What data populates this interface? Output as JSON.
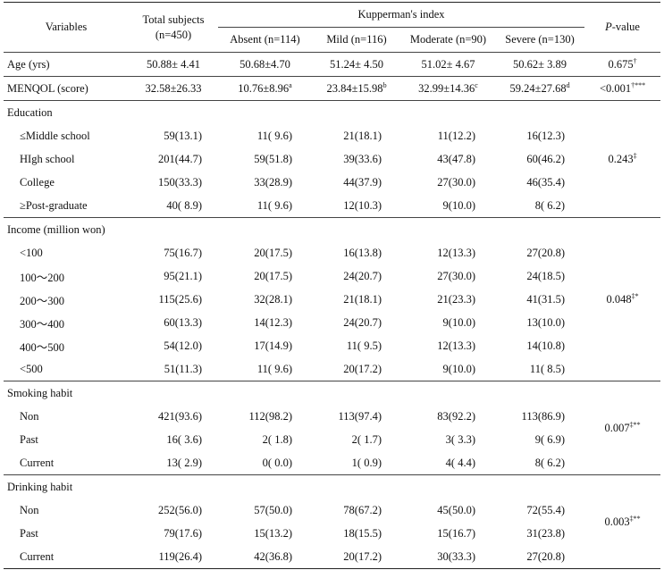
{
  "header": {
    "variables": "Variables",
    "total_subjects": "Total subjects",
    "total_n": "(n=450)",
    "kupperman": "Kupperman's index",
    "groups": [
      "Absent (n=114)",
      "Mild (n=116)",
      "Moderate (n=90)",
      "Severe (n=130)"
    ],
    "pvalue_italic": "P",
    "pvalue_rest": "-value"
  },
  "summary_rows": [
    {
      "label": "Age (yrs)",
      "total": "50.88± 4.41",
      "absent": "50.68±4.70",
      "mild": "51.24± 4.50",
      "moderate": "51.02± 4.67",
      "severe": "50.62± 3.89",
      "sup": [
        "",
        "",
        "",
        "",
        ""
      ],
      "p": "0.675",
      "p_sup": "†"
    },
    {
      "label": "MENQOL (score)",
      "total": "32.58±26.33",
      "absent": "10.76±8.96",
      "mild": "23.84±15.98",
      "moderate": "32.99±14.36",
      "severe": "59.24±27.68",
      "sup": [
        "",
        "a",
        "b",
        "c",
        "d"
      ],
      "p": "<0.001",
      "p_sup": "†***"
    }
  ],
  "sections": [
    {
      "title": "Education",
      "p": "0.243",
      "p_sup": "‡",
      "rows": [
        {
          "label": "≤Middle school",
          "total": "59(13.1)",
          "absent": "11( 9.6)",
          "mild": "21(18.1)",
          "moderate": "11(12.2)",
          "severe": "16(12.3)"
        },
        {
          "label": "HIgh school",
          "total": "201(44.7)",
          "absent": "59(51.8)",
          "mild": "39(33.6)",
          "moderate": "43(47.8)",
          "severe": "60(46.2)"
        },
        {
          "label": "College",
          "total": "150(33.3)",
          "absent": "33(28.9)",
          "mild": "44(37.9)",
          "moderate": "27(30.0)",
          "severe": "46(35.4)"
        },
        {
          "label": "≥Post-graduate",
          "total": "40( 8.9)",
          "absent": "11( 9.6)",
          "mild": "12(10.3)",
          "moderate": "9(10.0)",
          "severe": "8( 6.2)"
        }
      ]
    },
    {
      "title": "Income (million won)",
      "p": "0.048",
      "p_sup": "‡*",
      "rows": [
        {
          "label": "<100",
          "total": "75(16.7)",
          "absent": "20(17.5)",
          "mild": "16(13.8)",
          "moderate": "12(13.3)",
          "severe": "27(20.8)"
        },
        {
          "label": "100～200",
          "total": "95(21.1)",
          "absent": "20(17.5)",
          "mild": "24(20.7)",
          "moderate": "27(30.0)",
          "severe": "24(18.5)"
        },
        {
          "label": "200～300",
          "total": "115(25.6)",
          "absent": "32(28.1)",
          "mild": "21(18.1)",
          "moderate": "21(23.3)",
          "severe": "41(31.5)"
        },
        {
          "label": "300～400",
          "total": "60(13.3)",
          "absent": "14(12.3)",
          "mild": "24(20.7)",
          "moderate": "9(10.0)",
          "severe": "13(10.0)"
        },
        {
          "label": "400～500",
          "total": "54(12.0)",
          "absent": "17(14.9)",
          "mild": "11( 9.5)",
          "moderate": "12(13.3)",
          "severe": "14(10.8)"
        },
        {
          "label": "<500",
          "total": "51(11.3)",
          "absent": "11( 9.6)",
          "mild": "20(17.2)",
          "moderate": "9(10.0)",
          "severe": "11( 8.5)"
        }
      ]
    },
    {
      "title": "Smoking habit",
      "p": "0.007",
      "p_sup": "‡**",
      "rows": [
        {
          "label": "Non",
          "total": "421(93.6)",
          "absent": "112(98.2)",
          "mild": "113(97.4)",
          "moderate": "83(92.2)",
          "severe": "113(86.9)"
        },
        {
          "label": "Past",
          "total": "16( 3.6)",
          "absent": "2( 1.8)",
          "mild": "2( 1.7)",
          "moderate": "3( 3.3)",
          "severe": "9( 6.9)"
        },
        {
          "label": "Current",
          "total": "13( 2.9)",
          "absent": "0( 0.0)",
          "mild": "1( 0.9)",
          "moderate": "4( 4.4)",
          "severe": "8( 6.2)"
        }
      ]
    },
    {
      "title": "Drinking habit",
      "p": "0.003",
      "p_sup": "‡**",
      "rows": [
        {
          "label": "Non",
          "total": "252(56.0)",
          "absent": "57(50.0)",
          "mild": "78(67.2)",
          "moderate": "45(50.0)",
          "severe": "72(55.4)"
        },
        {
          "label": "Past",
          "total": "79(17.6)",
          "absent": "15(13.2)",
          "mild": "18(15.5)",
          "moderate": "15(16.7)",
          "severe": "31(23.8)"
        },
        {
          "label": "Current",
          "total": "119(26.4)",
          "absent": "42(36.8)",
          "mild": "20(17.2)",
          "moderate": "30(33.3)",
          "severe": "27(20.8)"
        }
      ]
    }
  ]
}
